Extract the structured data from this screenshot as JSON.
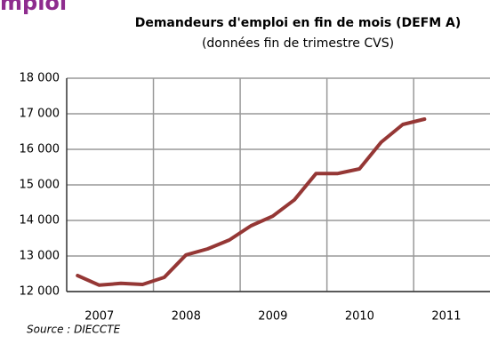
{
  "heading": "mploi",
  "chart_data": {
    "type": "line",
    "title": "Demandeurs d'emploi en fin de mois (DEFM A)",
    "subtitle": "(données fin de trimestre CVS)",
    "x": [
      2007.125,
      2007.375,
      2007.625,
      2007.875,
      2008.125,
      2008.375,
      2008.625,
      2008.875,
      2009.125,
      2009.375,
      2009.625,
      2009.875,
      2010.125,
      2010.375,
      2010.625,
      2010.875,
      2011.125
    ],
    "series": [
      {
        "color": "#953735",
        "values": [
          12450,
          12180,
          12230,
          12200,
          12400,
          13030,
          13200,
          13450,
          13850,
          14120,
          14580,
          15320,
          15320,
          15450,
          16200,
          16700,
          16850
        ]
      }
    ],
    "xlim": [
      2007,
      2011.88
    ],
    "xticks": [
      {
        "value": 2007.5,
        "label": "2007"
      },
      {
        "value": 2008.5,
        "label": "2008"
      },
      {
        "value": 2009.5,
        "label": "2009"
      },
      {
        "value": 2010.5,
        "label": "2010"
      },
      {
        "value": 2011.5,
        "label": "2011"
      }
    ],
    "ylim": [
      12000,
      18000
    ],
    "yticks": [
      {
        "value": 12000,
        "label": "12 000"
      },
      {
        "value": 13000,
        "label": "13 000"
      },
      {
        "value": 14000,
        "label": "14 000"
      },
      {
        "value": 15000,
        "label": "15 000"
      },
      {
        "value": 16000,
        "label": "16 000"
      },
      {
        "value": 17000,
        "label": "17 000"
      },
      {
        "value": 18000,
        "label": "18 000"
      }
    ],
    "grid": true,
    "source": "Source : DIECCTE"
  }
}
